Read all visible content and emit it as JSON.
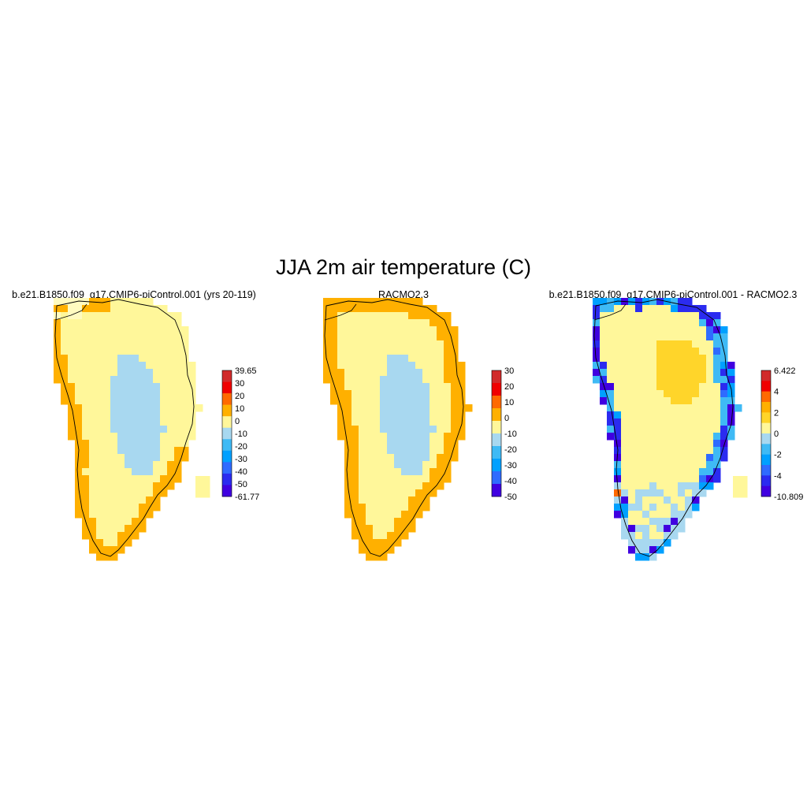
{
  "title": "JJA 2m air temperature (C)",
  "colors": {
    "sea": "#ffffff",
    "coast": "#000000"
  },
  "panels": [
    {
      "title": "b.e21.B1850.f09_g17.CMIP6-piControl.001 (yrs 20-119)",
      "field": "model",
      "colorbar": {
        "ticks": [
          "39.65",
          "30",
          "20",
          "10",
          "0",
          "-10",
          "-20",
          "-30",
          "-40",
          "-50",
          "-61.77"
        ],
        "colors": [
          "#d12a2a",
          "#f00000",
          "#ff6a00",
          "#ffb000",
          "#fff79a",
          "#a8d8f0",
          "#3fbaf5",
          "#00a0ff",
          "#2f6bff",
          "#2b2bf0",
          "#4000e0"
        ]
      }
    },
    {
      "title": "RACMO2.3",
      "field": "racmo",
      "colorbar": {
        "ticks": [
          "30",
          "20",
          "10",
          "0",
          "-10",
          "-20",
          "-30",
          "-40",
          "-50"
        ],
        "colors": [
          "#d12a2a",
          "#f00000",
          "#ff6a00",
          "#ffb000",
          "#fff79a",
          "#a8d8f0",
          "#3fbaf5",
          "#00a0ff",
          "#2f6bff",
          "#4000e0"
        ]
      }
    },
    {
      "title": "b.e21.B1850.f09_g17.CMIP6-piControl.001 - RACMO2.3",
      "field": "diff",
      "colorbar": {
        "ticks": [
          "6.422",
          "4",
          "2",
          "0",
          "-2",
          "-4",
          "-10.809"
        ],
        "colors": [
          "#d12a2a",
          "#f00000",
          "#ff6a00",
          "#ffb000",
          "#ffd52a",
          "#fff79a",
          "#a8d8f0",
          "#3fbaf5",
          "#00a0ff",
          "#2f6bff",
          "#2b2bf0",
          "#4000e0"
        ]
      }
    }
  ]
}
